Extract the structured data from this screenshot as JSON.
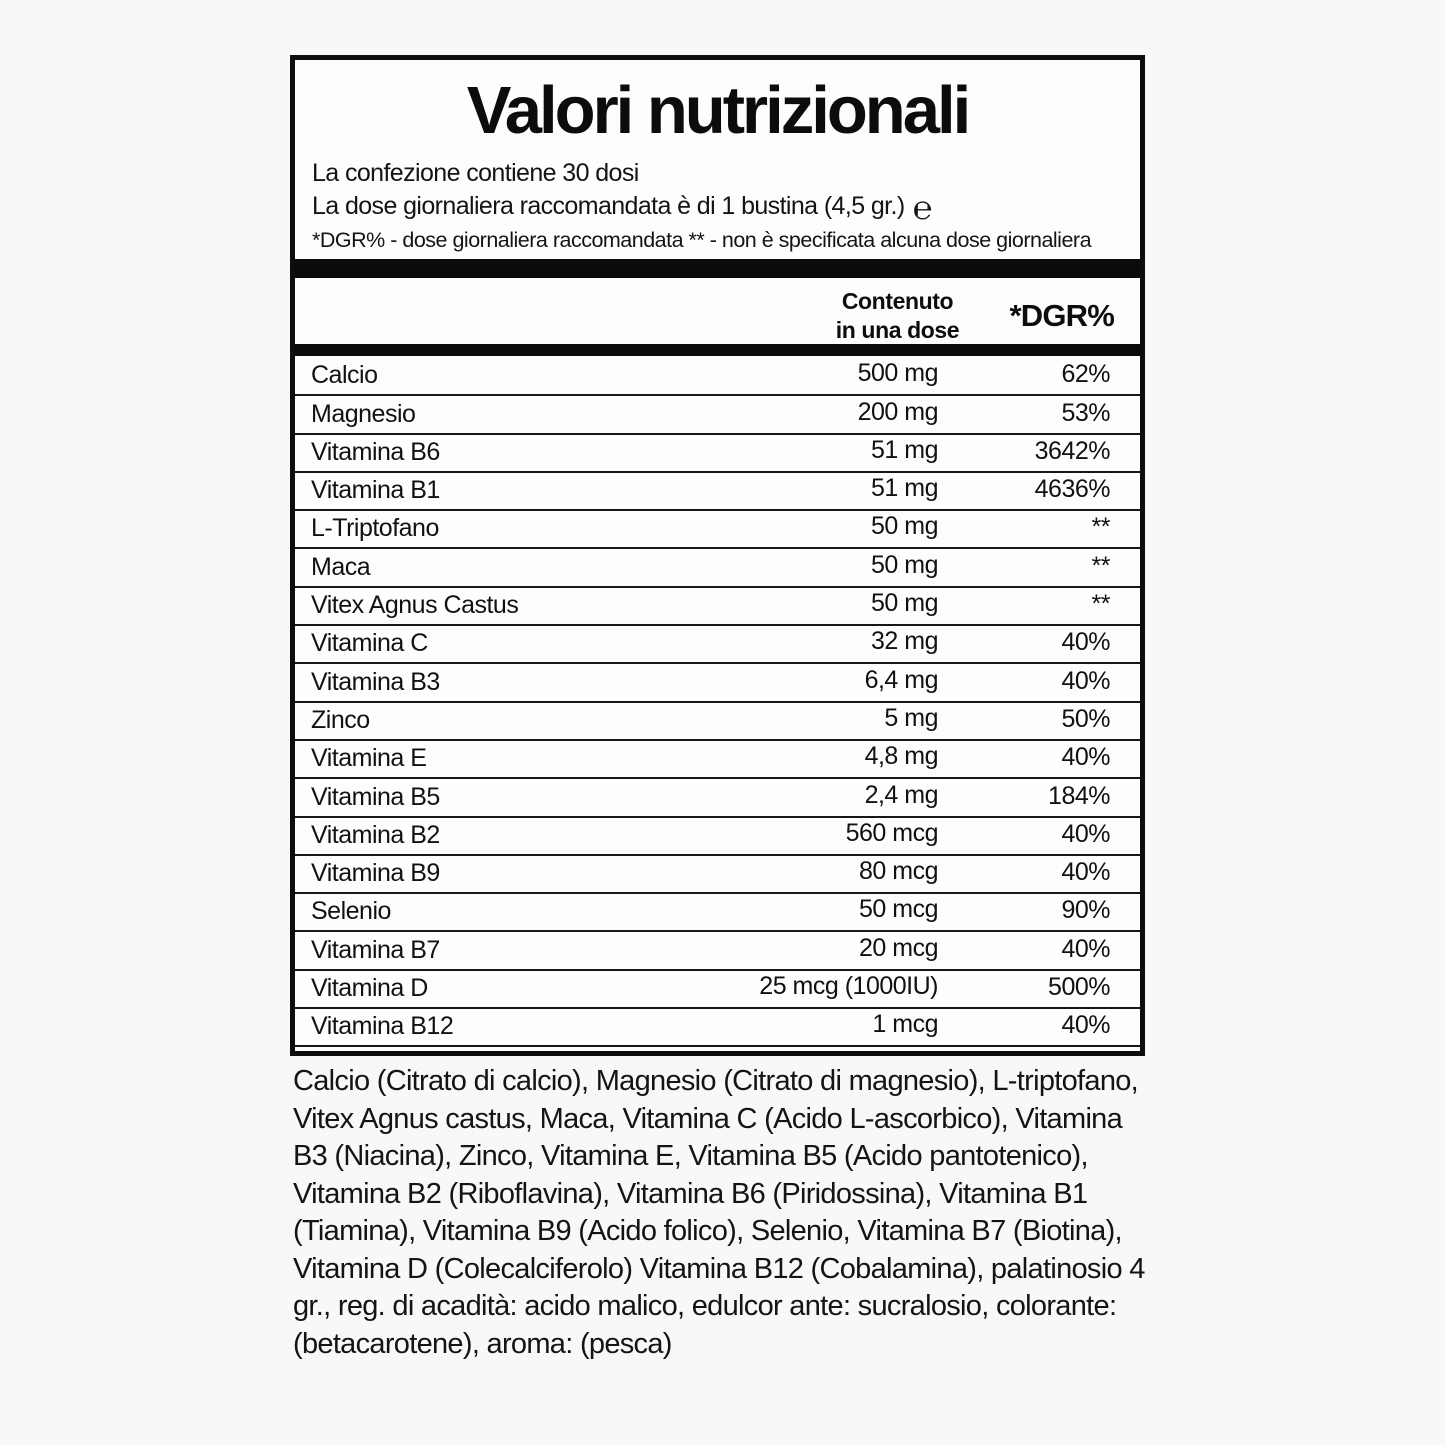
{
  "colors": {
    "page_background": "#f8f8f8",
    "box_background": "#fdfdfd",
    "ink": "#111111",
    "bar": "#0b0b0b"
  },
  "label": {
    "title": "Valori nutrizionali",
    "info_line_1": "La confezione contiene 30 dosi",
    "info_line_2": "La dose giornaliera raccomandata è di 1 bustina (4,5 gr.)",
    "estimated_sign": "℮",
    "info_line_3": "*DGR% - dose giornaliera raccomandata ** - non è specificata alcuna dose giornaliera",
    "table": {
      "header_contenuto_line1": "Contenuto",
      "header_contenuto_line2": "in una dose",
      "header_dgr": "*DGR%",
      "rows": [
        {
          "name": "Calcio",
          "amount": "500 mg",
          "dgr": "62%"
        },
        {
          "name": "Magnesio",
          "amount": "200 mg",
          "dgr": "53%"
        },
        {
          "name": "Vitamina B6",
          "amount": "51 mg",
          "dgr": "3642%"
        },
        {
          "name": "Vitamina B1",
          "amount": "51 mg",
          "dgr": "4636%"
        },
        {
          "name": "L-Triptofano",
          "amount": "50 mg",
          "dgr": "**"
        },
        {
          "name": "Maca",
          "amount": "50 mg",
          "dgr": "**"
        },
        {
          "name": "Vitex Agnus Castus",
          "amount": "50 mg",
          "dgr": "**"
        },
        {
          "name": "Vitamina C",
          "amount": "32 mg",
          "dgr": "40%"
        },
        {
          "name": "Vitamina B3",
          "amount": "6,4 mg",
          "dgr": "40%"
        },
        {
          "name": "Zinco",
          "amount": "5 mg",
          "dgr": "50%"
        },
        {
          "name": "Vitamina E",
          "amount": "4,8 mg",
          "dgr": "40%"
        },
        {
          "name": "Vitamina B5",
          "amount": "2,4 mg",
          "dgr": "184%"
        },
        {
          "name": "Vitamina B2",
          "amount": "560 mcg",
          "dgr": "40%"
        },
        {
          "name": "Vitamina B9",
          "amount": "80 mcg",
          "dgr": "40%"
        },
        {
          "name": "Selenio",
          "amount": "50 mcg",
          "dgr": "90%"
        },
        {
          "name": "Vitamina B7",
          "amount": "20 mcg",
          "dgr": "40%"
        },
        {
          "name": "Vitamina D",
          "amount": "25 mcg (1000IU)",
          "dgr": "500%"
        },
        {
          "name": "Vitamina B12",
          "amount": "1 mcg",
          "dgr": "40%"
        }
      ]
    },
    "ingredients": "Calcio (Citrato di calcio), Magnesio (Citrato di magnesio), L-triptofano, Vitex Agnus castus, Maca, Vitamina C (Acido L-ascorbico), Vitamina B3 (Niacina), Zinco, Vitamina E, Vitamina B5 (Acido pantotenico), Vitamina B2 (Riboflavina), Vitamina B6 (Piridossina), Vitamina B1 (Tiamina), Vitamina B9 (Acido folico), Selenio, Vitamina B7 (Biotina), Vitamina D (Colecalciferolo) Vitamina B12 (Cobalamina), palatinosio 4 gr., reg. di acadità: acido malico, edulcor ante: sucralosio, colorante: (betacarotene), aroma: (pesca)"
  }
}
